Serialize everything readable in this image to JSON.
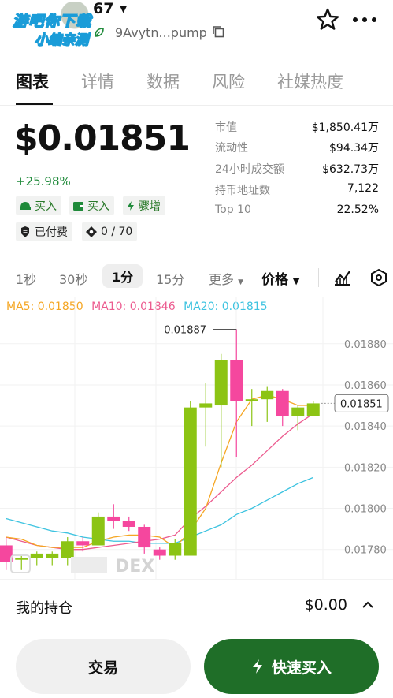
{
  "header": {
    "token_name": "67",
    "avatar_stamp_line1": "游吧你下载",
    "avatar_stamp_line2": "小编亲测",
    "address": "9Avytn...pump",
    "icons": [
      "leaf-icon",
      "copy-icon",
      "star-icon",
      "more-icon",
      "chevron-down-icon"
    ]
  },
  "tabs": [
    {
      "label": "图表",
      "active": true
    },
    {
      "label": "详情",
      "active": false
    },
    {
      "label": "数据",
      "active": false
    },
    {
      "label": "风险",
      "active": false
    },
    {
      "label": "社媒热度",
      "active": false
    }
  ],
  "price": {
    "value": "$0.01851",
    "change": "+25.98%"
  },
  "badges": {
    "buy1": "买入",
    "buy2": "买入",
    "surge": "骤增",
    "paid": "已付费",
    "holders_count": "0 / 70"
  },
  "stats": [
    {
      "label": "市值",
      "value": "$1,850.41万"
    },
    {
      "label": "流动性",
      "value": "$94.34万"
    },
    {
      "label": "24小时成交额",
      "value": "$632.73万"
    },
    {
      "label": "持币地址数",
      "value": "7,122"
    },
    {
      "label": "Top 10",
      "value": "22.52%"
    }
  ],
  "intervals": [
    {
      "label": "1秒",
      "active": false
    },
    {
      "label": "30秒",
      "active": false
    },
    {
      "label": "1分",
      "active": true
    },
    {
      "label": "15分",
      "active": false
    }
  ],
  "interval_more": "更多",
  "price_selector": "价格",
  "ma": {
    "ma5": "MA5: 0.01850",
    "ma10": "MA10: 0.01846",
    "ma20": "MA20: 0.01815",
    "colors": {
      "ma5": "#f5a623",
      "ma10": "#ec5b8f",
      "ma20": "#3dc3e0"
    }
  },
  "chart_data": {
    "type": "candlestick",
    "y_ticks": [
      "0.01880",
      "0.01860",
      "0.01840",
      "0.01820",
      "0.01800",
      "0.01780"
    ],
    "ylim": [
      0.01768,
      0.01896
    ],
    "high_label": "0.01887",
    "current_label": "0.01851",
    "colors": {
      "up": "#8cc414",
      "down": "#f5479e"
    },
    "candles": [
      {
        "o": 0.01782,
        "c": 0.01774,
        "h": 0.01786,
        "l": 0.0177
      },
      {
        "o": 0.01775,
        "c": 0.01776,
        "h": 0.01777,
        "l": 0.0177
      },
      {
        "o": 0.01776,
        "c": 0.01778,
        "h": 0.01779,
        "l": 0.01772
      },
      {
        "o": 0.01776,
        "c": 0.01778,
        "h": 0.01779,
        "l": 0.01772
      },
      {
        "o": 0.01776,
        "c": 0.01784,
        "h": 0.01786,
        "l": 0.01772
      },
      {
        "o": 0.01784,
        "c": 0.01782,
        "h": 0.01786,
        "l": 0.01779
      },
      {
        "o": 0.01782,
        "c": 0.01796,
        "h": 0.01798,
        "l": 0.01782
      },
      {
        "o": 0.01796,
        "c": 0.01794,
        "h": 0.01802,
        "l": 0.0179
      },
      {
        "o": 0.01794,
        "c": 0.01791,
        "h": 0.01796,
        "l": 0.01789
      },
      {
        "o": 0.01791,
        "c": 0.01781,
        "h": 0.01792,
        "l": 0.01778
      },
      {
        "o": 0.0178,
        "c": 0.01777,
        "h": 0.01781,
        "l": 0.01775
      },
      {
        "o": 0.01777,
        "c": 0.01783,
        "h": 0.01785,
        "l": 0.01775
      },
      {
        "o": 0.01777,
        "c": 0.01849,
        "h": 0.01852,
        "l": 0.01777
      },
      {
        "o": 0.01849,
        "c": 0.01851,
        "h": 0.01861,
        "l": 0.0183
      },
      {
        "o": 0.0185,
        "c": 0.01872,
        "h": 0.01875,
        "l": 0.0182
      },
      {
        "o": 0.01872,
        "c": 0.01852,
        "h": 0.01887,
        "l": 0.01825
      },
      {
        "o": 0.01852,
        "c": 0.01853,
        "h": 0.01858,
        "l": 0.0184
      },
      {
        "o": 0.01853,
        "c": 0.01857,
        "h": 0.01859,
        "l": 0.01842
      },
      {
        "o": 0.01857,
        "c": 0.01845,
        "h": 0.01858,
        "l": 0.0184
      },
      {
        "o": 0.01845,
        "c": 0.01849,
        "h": 0.0185,
        "l": 0.01838
      },
      {
        "o": 0.01845,
        "c": 0.01851,
        "h": 0.01852,
        "l": 0.01845
      }
    ],
    "ma5": [
      0.01786,
      0.01785,
      0.01782,
      0.01781,
      0.01781,
      0.01781,
      0.01784,
      0.01786,
      0.01787,
      0.01787,
      0.01786,
      0.01781,
      0.01789,
      0.018,
      0.01822,
      0.01842,
      0.01853,
      0.01855,
      0.01853,
      0.0185,
      0.0185
    ],
    "ma10": [
      0.01786,
      0.01784,
      0.01782,
      0.01781,
      0.0178,
      0.0178,
      0.01781,
      0.01782,
      0.01783,
      0.01784,
      0.01785,
      0.01787,
      0.01795,
      0.01801,
      0.01808,
      0.01815,
      0.01821,
      0.01828,
      0.01835,
      0.01841,
      0.01846
    ],
    "ma20": [
      0.01795,
      0.01793,
      0.01791,
      0.01789,
      0.01788,
      0.01786,
      0.01785,
      0.01784,
      0.01784,
      0.01783,
      0.01783,
      0.01783,
      0.01786,
      0.01789,
      0.01792,
      0.01797,
      0.018,
      0.01804,
      0.01808,
      0.01812,
      0.01815
    ]
  },
  "watermark": "DEX",
  "holding": {
    "label": "我的持仓",
    "value": "$0.00"
  },
  "buttons": {
    "trade": "交易",
    "quick_buy": "快速买入"
  }
}
